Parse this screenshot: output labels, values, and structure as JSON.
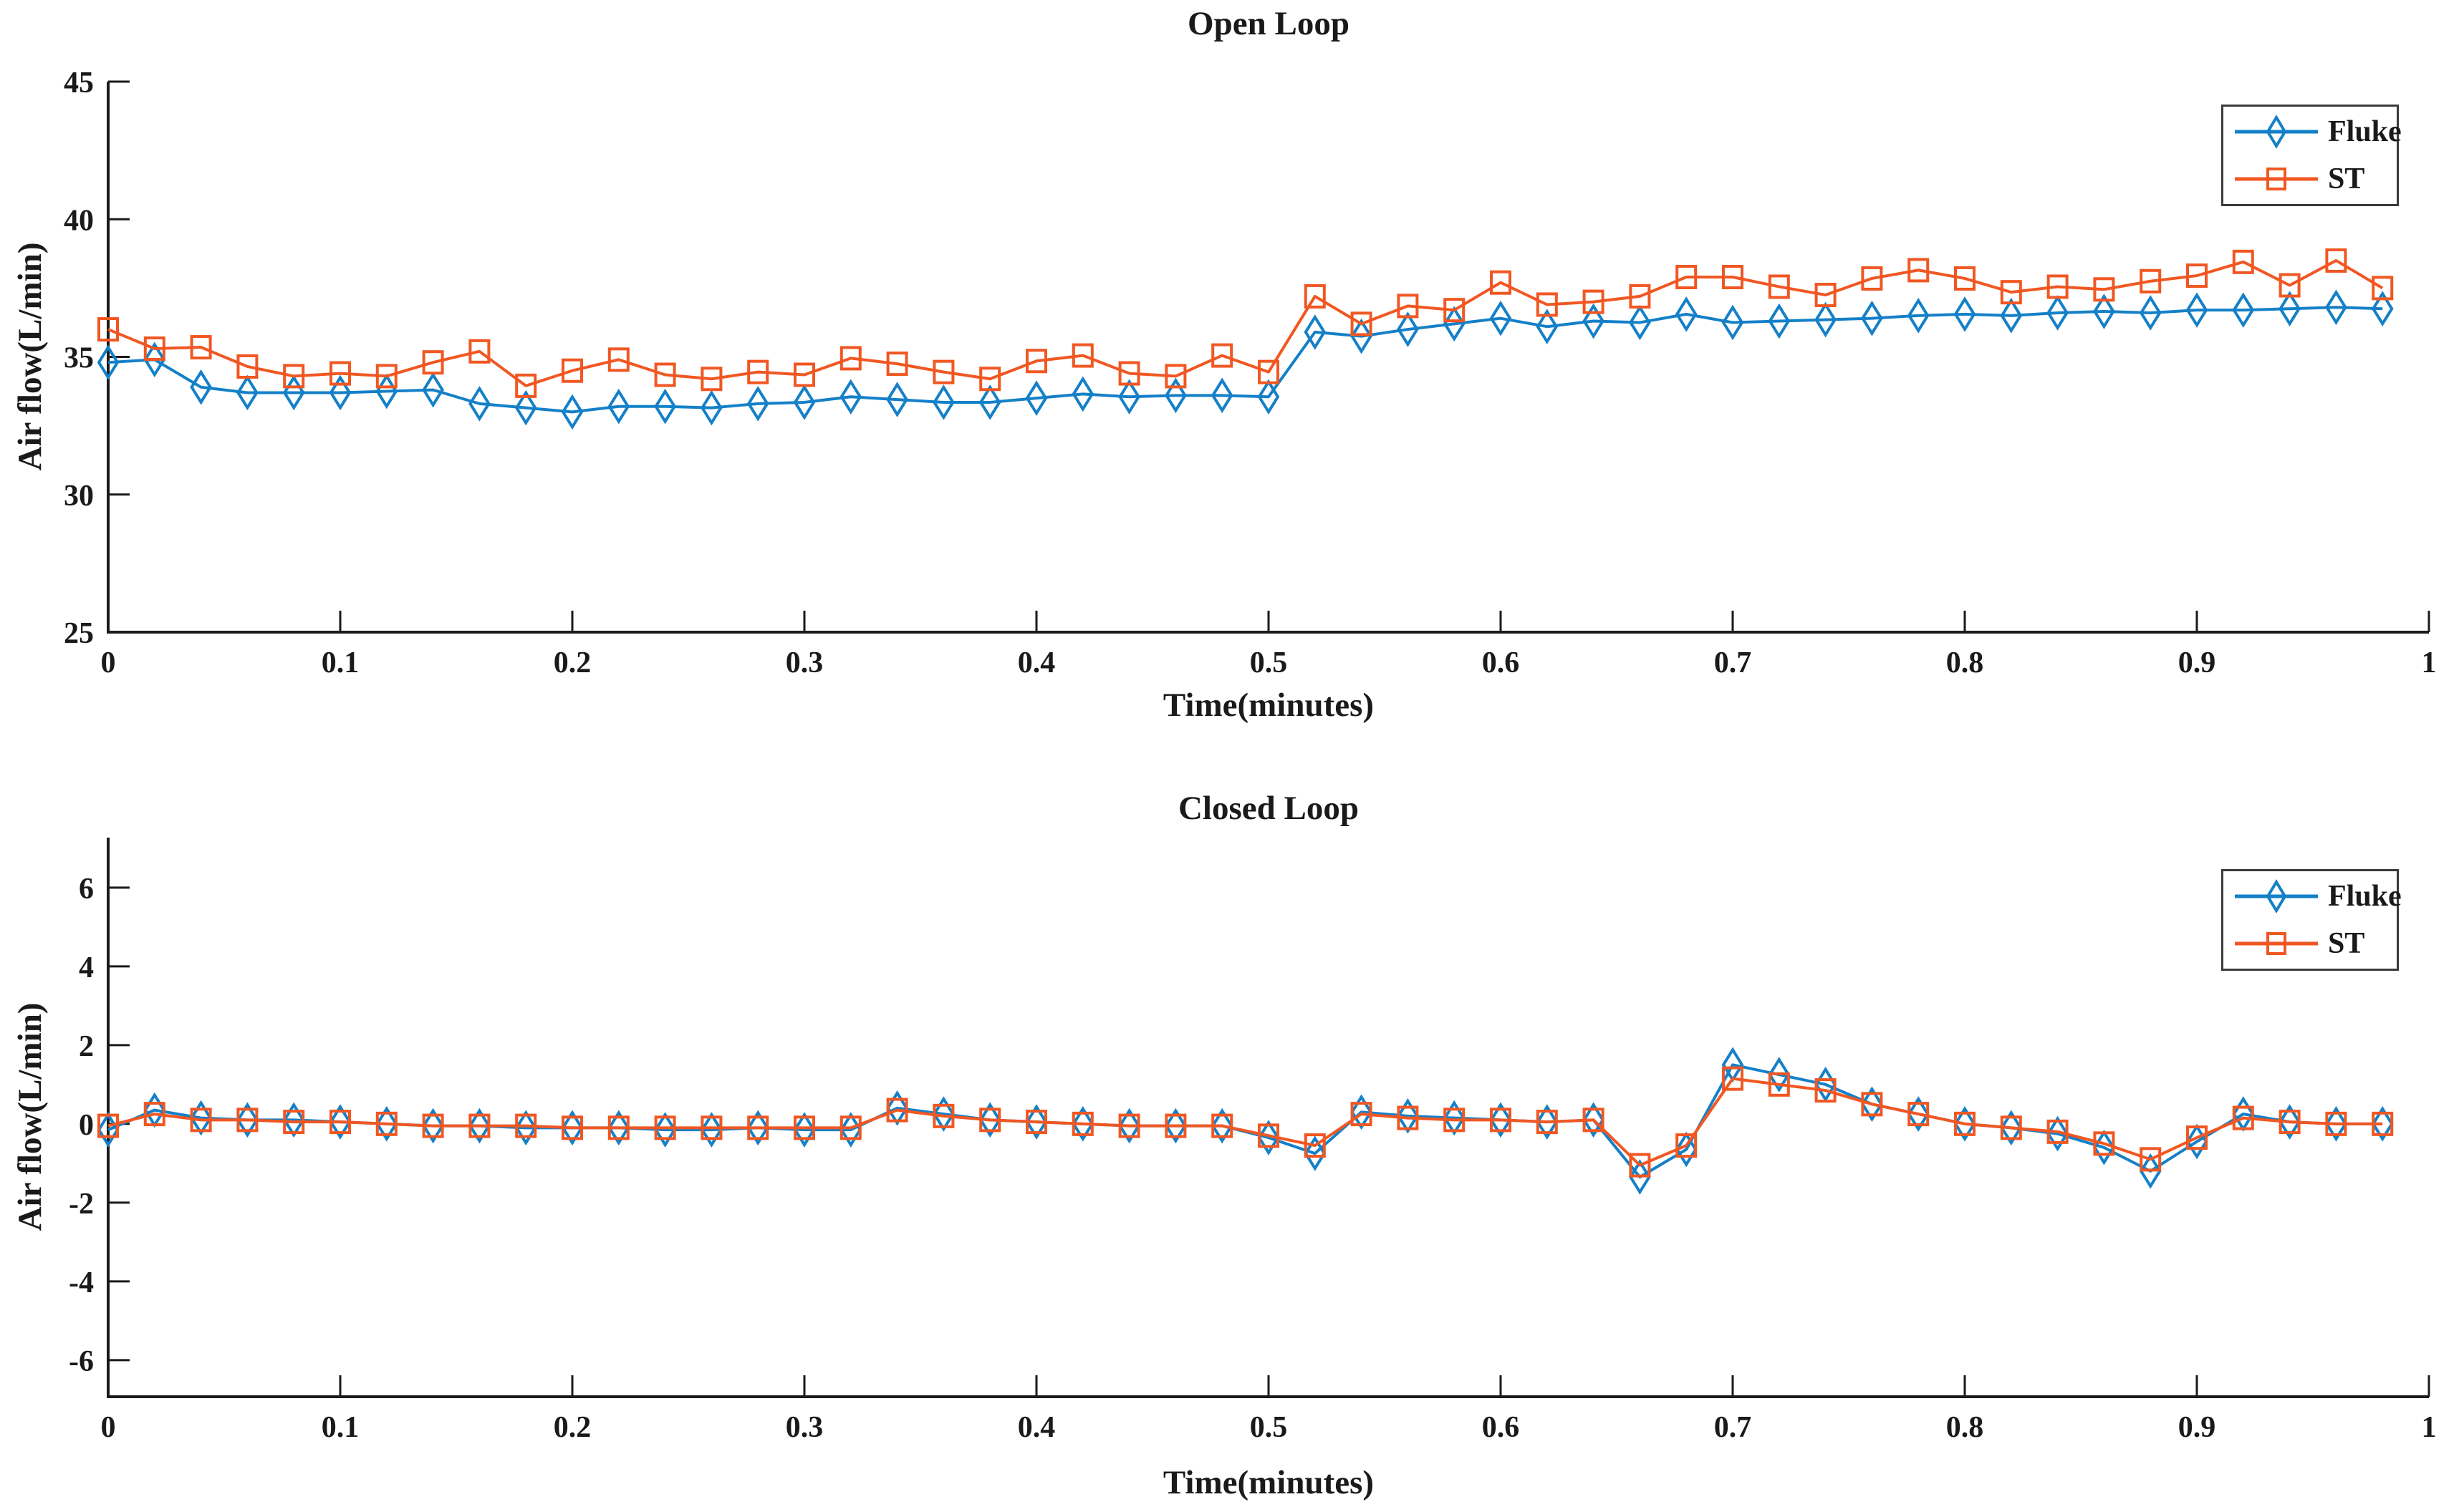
{
  "figure": {
    "background": "#ffffff",
    "text_color": "#1a1a1a",
    "axis_color": "#1a1a1a"
  },
  "chart_data": [
    {
      "type": "line",
      "title": "Open Loop",
      "xlabel": "Time(minutes)",
      "ylabel": "Air flow(L/min)",
      "xlim": [
        0,
        1
      ],
      "ylim": [
        25,
        45
      ],
      "grid": false,
      "legend": {
        "position": "top-right",
        "border": true
      },
      "xticks": {
        "values": [
          0,
          0.1,
          0.2,
          0.3,
          0.4,
          0.5,
          0.6,
          0.7,
          0.8,
          0.9,
          1
        ],
        "labels": [
          "0",
          "0.1",
          "0.2",
          "0.3",
          "0.4",
          "0.5",
          "0.6",
          "0.7",
          "0.8",
          "0.9",
          "1"
        ]
      },
      "yticks": {
        "values": [
          25,
          30,
          35,
          40,
          45
        ],
        "labels": [
          "25",
          "30",
          "35",
          "40",
          "45"
        ]
      },
      "x": [
        0,
        0.02,
        0.04,
        0.06,
        0.08,
        0.1,
        0.12,
        0.14,
        0.16,
        0.18,
        0.2,
        0.22,
        0.24,
        0.26,
        0.28,
        0.3,
        0.32,
        0.34,
        0.36,
        0.38,
        0.4,
        0.42,
        0.44,
        0.46,
        0.48,
        0.5,
        0.52,
        0.54,
        0.56,
        0.58,
        0.6,
        0.62,
        0.64,
        0.66,
        0.68,
        0.7,
        0.72,
        0.74,
        0.76,
        0.78,
        0.8,
        0.82,
        0.84,
        0.86,
        0.88,
        0.9,
        0.92,
        0.94,
        0.96,
        0.98
      ],
      "series": [
        {
          "name": "Fluke",
          "color": "#1480C8",
          "marker": "diamond",
          "values": [
            34.8,
            34.9,
            33.9,
            33.7,
            33.7,
            33.7,
            33.75,
            33.8,
            33.3,
            33.15,
            33.0,
            33.2,
            33.2,
            33.15,
            33.3,
            33.35,
            33.55,
            33.45,
            33.35,
            33.35,
            33.5,
            33.65,
            33.55,
            33.6,
            33.6,
            33.55,
            35.9,
            35.75,
            36.0,
            36.2,
            36.4,
            36.1,
            36.3,
            36.25,
            36.55,
            36.25,
            36.3,
            36.35,
            36.4,
            36.5,
            36.55,
            36.5,
            36.6,
            36.65,
            36.6,
            36.7,
            36.7,
            36.75,
            36.8,
            36.75
          ]
        },
        {
          "name": "ST",
          "color": "#F15722",
          "marker": "square",
          "values": [
            36.0,
            35.3,
            35.35,
            34.65,
            34.3,
            34.4,
            34.3,
            34.8,
            35.2,
            33.95,
            34.5,
            34.9,
            34.35,
            34.2,
            34.45,
            34.35,
            34.95,
            34.75,
            34.45,
            34.2,
            34.85,
            35.05,
            34.4,
            34.3,
            35.05,
            34.45,
            37.2,
            36.2,
            36.85,
            36.7,
            37.7,
            36.9,
            37.0,
            37.2,
            37.9,
            37.9,
            37.55,
            37.25,
            37.85,
            38.15,
            37.85,
            37.35,
            37.55,
            37.45,
            37.75,
            37.95,
            38.45,
            37.6,
            38.5,
            37.5
          ]
        }
      ]
    },
    {
      "type": "line",
      "title": "Closed Loop",
      "xlabel": "Time(minutes)",
      "ylabel": "Air flow(L/min)",
      "xlim": [
        0,
        1
      ],
      "ylim": [
        -6.93,
        7.27
      ],
      "grid": false,
      "legend": {
        "position": "top-right",
        "border": true
      },
      "xticks": {
        "values": [
          0,
          0.1,
          0.2,
          0.3,
          0.4,
          0.5,
          0.6,
          0.7,
          0.8,
          0.9,
          1
        ],
        "labels": [
          "0",
          "0.1",
          "0.2",
          "0.3",
          "0.4",
          "0.5",
          "0.6",
          "0.7",
          "0.8",
          "0.9",
          "1"
        ]
      },
      "yticks": {
        "values": [
          -6,
          -4,
          -2,
          0,
          2,
          4,
          6
        ],
        "labels": [
          "-6",
          "-4",
          "-2",
          "0",
          "2",
          "4",
          "6"
        ]
      },
      "x": [
        0,
        0.02,
        0.04,
        0.06,
        0.08,
        0.1,
        0.12,
        0.14,
        0.16,
        0.18,
        0.2,
        0.22,
        0.24,
        0.26,
        0.28,
        0.3,
        0.32,
        0.34,
        0.36,
        0.38,
        0.4,
        0.42,
        0.44,
        0.46,
        0.48,
        0.5,
        0.52,
        0.54,
        0.56,
        0.58,
        0.6,
        0.62,
        0.64,
        0.66,
        0.68,
        0.7,
        0.72,
        0.74,
        0.76,
        0.78,
        0.8,
        0.82,
        0.84,
        0.86,
        0.88,
        0.9,
        0.92,
        0.94,
        0.96,
        0.98
      ],
      "series": [
        {
          "name": "Fluke",
          "color": "#1480C8",
          "marker": "diamond",
          "values": [
            -0.15,
            0.35,
            0.15,
            0.1,
            0.1,
            0.05,
            0.0,
            -0.05,
            -0.05,
            -0.1,
            -0.1,
            -0.1,
            -0.15,
            -0.15,
            -0.1,
            -0.15,
            -0.15,
            0.4,
            0.25,
            0.1,
            0.05,
            0.0,
            -0.05,
            -0.05,
            -0.05,
            -0.35,
            -0.75,
            0.3,
            0.2,
            0.15,
            0.1,
            0.05,
            0.1,
            -1.35,
            -0.65,
            1.5,
            1.25,
            1.0,
            0.5,
            0.25,
            0.0,
            -0.1,
            -0.25,
            -0.6,
            -1.2,
            -0.45,
            0.25,
            0.05,
            0.0,
            0.0
          ]
        },
        {
          "name": "ST",
          "color": "#F15722",
          "marker": "square",
          "values": [
            -0.05,
            0.25,
            0.1,
            0.1,
            0.05,
            0.05,
            0.0,
            -0.05,
            -0.05,
            -0.05,
            -0.1,
            -0.1,
            -0.1,
            -0.1,
            -0.1,
            -0.1,
            -0.1,
            0.35,
            0.2,
            0.1,
            0.05,
            0.0,
            -0.05,
            -0.05,
            -0.05,
            -0.3,
            -0.55,
            0.25,
            0.15,
            0.1,
            0.1,
            0.05,
            0.1,
            -1.05,
            -0.55,
            1.15,
            1.0,
            0.85,
            0.5,
            0.25,
            0.0,
            -0.1,
            -0.2,
            -0.5,
            -0.9,
            -0.35,
            0.15,
            0.05,
            0.0,
            0.0
          ]
        }
      ]
    }
  ]
}
